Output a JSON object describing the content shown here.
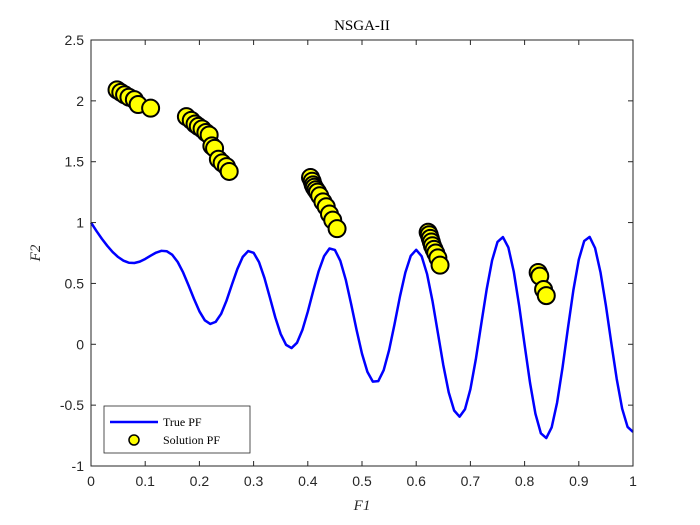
{
  "chart_data": {
    "type": "scatter",
    "title": "NSGA-II",
    "xlabel": "F1",
    "ylabel": "F2",
    "xlim": [
      0,
      1
    ],
    "ylim": [
      -1,
      2.5
    ],
    "xticks": [
      0,
      0.1,
      0.2,
      0.3,
      0.4,
      0.5,
      0.6,
      0.7,
      0.8,
      0.9,
      1
    ],
    "xtick_labels": [
      "0",
      "0.1",
      "0.2",
      "0.3",
      "0.4",
      "0.5",
      "0.6",
      "0.7",
      "0.8",
      "0.9",
      "1"
    ],
    "yticks": [
      -1,
      -0.5,
      0,
      0.5,
      1,
      1.5,
      2,
      2.5
    ],
    "ytick_labels": [
      "-1",
      "-0.5",
      "0",
      "0.5",
      "1",
      "1.5",
      "2",
      "2.5"
    ],
    "grid": false,
    "legend_position": "bottom-left",
    "colors": {
      "true_pf": "#0000ff",
      "solution_face": "#ffff00",
      "solution_edge": "#000000"
    },
    "series": [
      {
        "name": "True PF",
        "kind": "line",
        "x": [
          0,
          0.01,
          0.02,
          0.03,
          0.04,
          0.05,
          0.06,
          0.07,
          0.08,
          0.09,
          0.1,
          0.11,
          0.12,
          0.13,
          0.14,
          0.15,
          0.16,
          0.17,
          0.18,
          0.19,
          0.2,
          0.21,
          0.22,
          0.23,
          0.24,
          0.25,
          0.26,
          0.27,
          0.28,
          0.29,
          0.3,
          0.31,
          0.32,
          0.33,
          0.34,
          0.35,
          0.36,
          0.37,
          0.38,
          0.39,
          0.4,
          0.41,
          0.42,
          0.43,
          0.44,
          0.45,
          0.46,
          0.47,
          0.48,
          0.49,
          0.5,
          0.51,
          0.52,
          0.53,
          0.54,
          0.55,
          0.56,
          0.57,
          0.58,
          0.59,
          0.6,
          0.61,
          0.62,
          0.63,
          0.64,
          0.65,
          0.66,
          0.67,
          0.68,
          0.69,
          0.7,
          0.71,
          0.72,
          0.73,
          0.74,
          0.75,
          0.76,
          0.77,
          0.78,
          0.79,
          0.8,
          0.81,
          0.82,
          0.83,
          0.84,
          0.85,
          0.86,
          0.87,
          0.88,
          0.89,
          0.9,
          0.91,
          0.92,
          0.93,
          0.94,
          0.95,
          0.96,
          0.97,
          0.98,
          0.99,
          1
        ],
        "y": [
          1.0,
          0.931,
          0.867,
          0.809,
          0.758,
          0.717,
          0.687,
          0.67,
          0.668,
          0.679,
          0.701,
          0.728,
          0.753,
          0.768,
          0.764,
          0.735,
          0.676,
          0.59,
          0.484,
          0.373,
          0.271,
          0.197,
          0.167,
          0.184,
          0.249,
          0.358,
          0.49,
          0.618,
          0.718,
          0.766,
          0.752,
          0.675,
          0.545,
          0.385,
          0.221,
          0.084,
          -0.005,
          -0.031,
          0.012,
          0.117,
          0.268,
          0.438,
          0.6,
          0.724,
          0.787,
          0.775,
          0.686,
          0.531,
          0.33,
          0.117,
          -0.078,
          -0.227,
          -0.307,
          -0.303,
          -0.213,
          -0.048,
          0.165,
          0.392,
          0.59,
          0.727,
          0.776,
          0.724,
          0.578,
          0.357,
          0.093,
          -0.171,
          -0.395,
          -0.544,
          -0.595,
          -0.534,
          -0.369,
          -0.123,
          0.166,
          0.451,
          0.689,
          0.841,
          0.881,
          0.796,
          0.597,
          0.316,
          -0.005,
          -0.316,
          -0.571,
          -0.731,
          -0.77,
          -0.682,
          -0.478,
          -0.191,
          0.134,
          0.445,
          0.696,
          0.849,
          0.882,
          0.791,
          0.592,
          0.318,
          0.01,
          -0.286,
          -0.529,
          -0.679,
          -0.72
        ]
      },
      {
        "name": "Solution PF",
        "kind": "scatter",
        "x": [
          0.048,
          0.055,
          0.062,
          0.07,
          0.08,
          0.087,
          0.11,
          0.176,
          0.185,
          0.192,
          0.198,
          0.205,
          0.212,
          0.218,
          0.223,
          0.228,
          0.235,
          0.242,
          0.25,
          0.255,
          0.405,
          0.408,
          0.41,
          0.412,
          0.415,
          0.418,
          0.422,
          0.428,
          0.434,
          0.44,
          0.446,
          0.454,
          0.622,
          0.624,
          0.626,
          0.628,
          0.63,
          0.633,
          0.636,
          0.64,
          0.644,
          0.825,
          0.828,
          0.835,
          0.84
        ],
        "y": [
          2.09,
          2.07,
          2.05,
          2.03,
          2.01,
          1.97,
          1.94,
          1.87,
          1.84,
          1.81,
          1.79,
          1.77,
          1.74,
          1.72,
          1.63,
          1.61,
          1.52,
          1.49,
          1.46,
          1.42,
          1.37,
          1.34,
          1.31,
          1.29,
          1.27,
          1.25,
          1.22,
          1.17,
          1.13,
          1.07,
          1.02,
          0.95,
          0.92,
          0.9,
          0.87,
          0.84,
          0.81,
          0.78,
          0.75,
          0.71,
          0.65,
          0.59,
          0.56,
          0.45,
          0.4
        ]
      }
    ]
  }
}
